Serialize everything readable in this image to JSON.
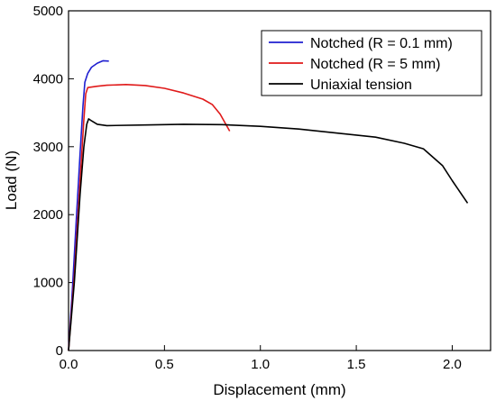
{
  "chart_data": {
    "type": "line",
    "xlabel": "Displacement (mm)",
    "ylabel": "Load (N)",
    "xlim": [
      0.0,
      2.2
    ],
    "ylim": [
      0,
      5000
    ],
    "x_ticks": [
      "0.0",
      "0.5",
      "1.0",
      "1.5",
      "2.0"
    ],
    "y_ticks": [
      "0",
      "1000",
      "2000",
      "3000",
      "4000",
      "5000"
    ],
    "legend_position": "top-right",
    "grid": false,
    "series": [
      {
        "name": "Notched (R = 0.1 mm)",
        "color": "#1f1fd0",
        "points": [
          [
            0.0,
            0
          ],
          [
            0.02,
            900
          ],
          [
            0.04,
            1900
          ],
          [
            0.06,
            2900
          ],
          [
            0.075,
            3600
          ],
          [
            0.085,
            3950
          ],
          [
            0.1,
            4080
          ],
          [
            0.12,
            4170
          ],
          [
            0.15,
            4230
          ],
          [
            0.18,
            4265
          ],
          [
            0.21,
            4260
          ]
        ]
      },
      {
        "name": "Notched (R = 5 mm)",
        "color": "#e01a1a",
        "points": [
          [
            0.0,
            0
          ],
          [
            0.03,
            1100
          ],
          [
            0.06,
            2500
          ],
          [
            0.08,
            3400
          ],
          [
            0.09,
            3780
          ],
          [
            0.1,
            3870
          ],
          [
            0.15,
            3890
          ],
          [
            0.2,
            3905
          ],
          [
            0.3,
            3915
          ],
          [
            0.4,
            3900
          ],
          [
            0.5,
            3860
          ],
          [
            0.6,
            3790
          ],
          [
            0.7,
            3700
          ],
          [
            0.75,
            3620
          ],
          [
            0.79,
            3480
          ],
          [
            0.82,
            3330
          ],
          [
            0.84,
            3230
          ]
        ]
      },
      {
        "name": "Uniaxial tension",
        "color": "#000000",
        "points": [
          [
            0.0,
            0
          ],
          [
            0.03,
            1000
          ],
          [
            0.06,
            2300
          ],
          [
            0.08,
            3000
          ],
          [
            0.095,
            3330
          ],
          [
            0.105,
            3410
          ],
          [
            0.12,
            3380
          ],
          [
            0.15,
            3330
          ],
          [
            0.2,
            3310
          ],
          [
            0.4,
            3320
          ],
          [
            0.6,
            3330
          ],
          [
            0.8,
            3325
          ],
          [
            1.0,
            3300
          ],
          [
            1.2,
            3260
          ],
          [
            1.4,
            3200
          ],
          [
            1.6,
            3140
          ],
          [
            1.75,
            3050
          ],
          [
            1.85,
            2970
          ],
          [
            1.95,
            2720
          ],
          [
            2.0,
            2500
          ],
          [
            2.08,
            2170
          ]
        ]
      }
    ]
  }
}
